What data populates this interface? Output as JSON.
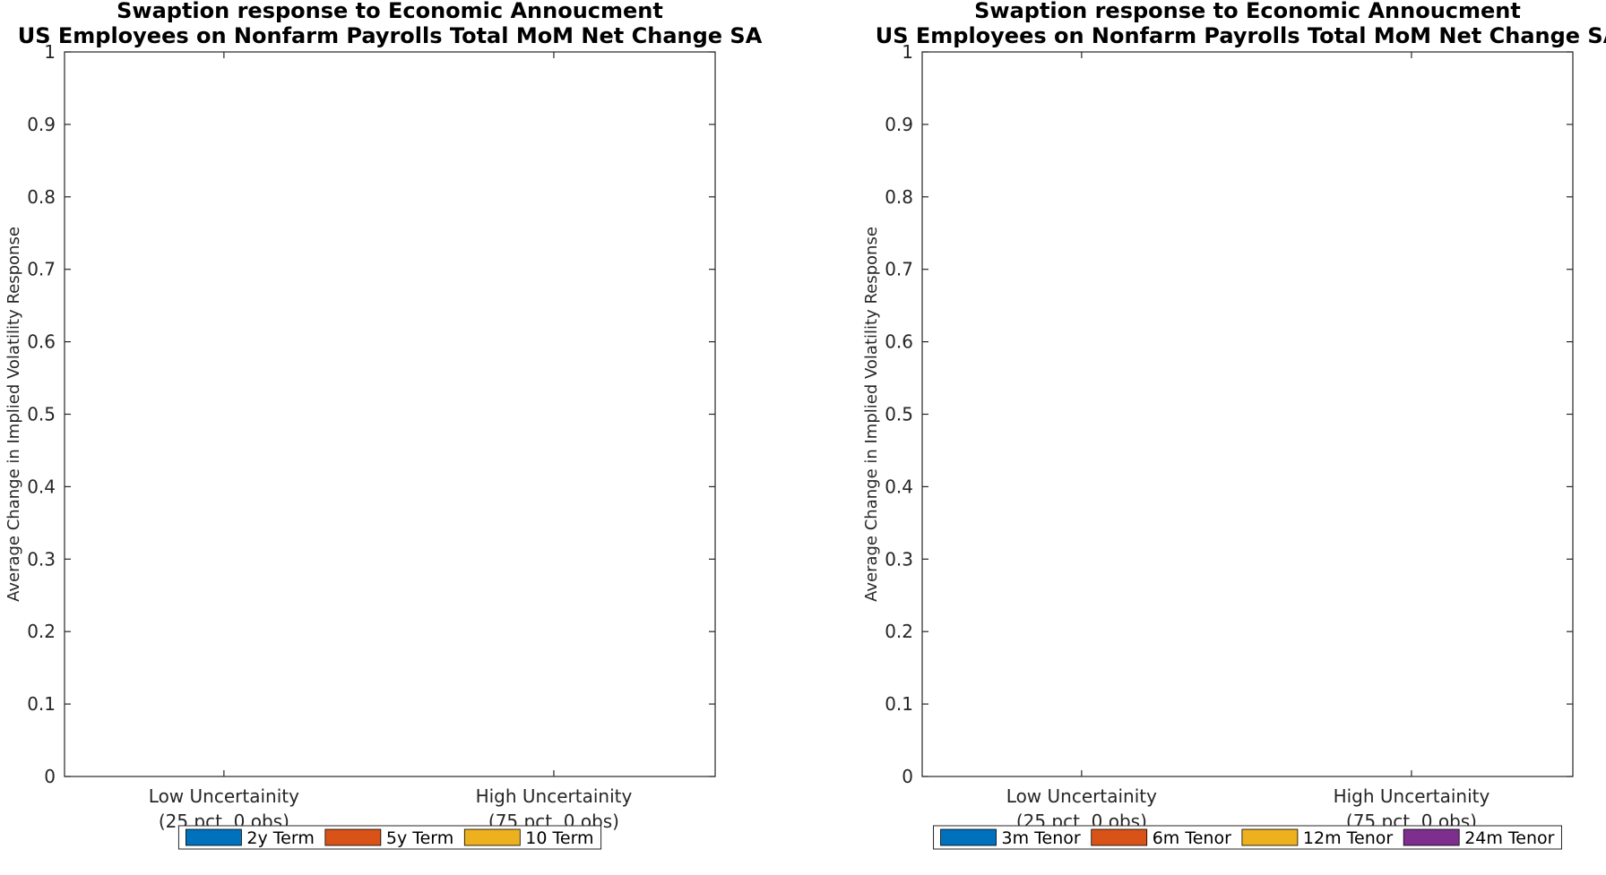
{
  "chart_data": [
    {
      "type": "bar",
      "title": "Swaption response to Economic Annoucment",
      "subtitle": "US Employees on Nonfarm Payrolls Total MoM Net Change SA",
      "xlabel": "",
      "ylabel": "Average Change in Implied Volatility Response",
      "categories": [
        [
          "Low Uncertainity",
          "(25 pct, 0 obs)"
        ],
        [
          "High Uncertainity",
          "(75 pct, 0 obs)"
        ]
      ],
      "ylim": [
        0,
        1
      ],
      "yticks": [
        0,
        0.1,
        0.2,
        0.3,
        0.4,
        0.5,
        0.6,
        0.7,
        0.8,
        0.9,
        1
      ],
      "ytick_labels": [
        "0",
        "0.1",
        "0.2",
        "0.3",
        "0.4",
        "0.5",
        "0.6",
        "0.7",
        "0.8",
        "0.9",
        "1"
      ],
      "grid": false,
      "legend_position": "bottom",
      "series": [
        {
          "name": "2y Term",
          "color": "#0072BD",
          "values": [
            null,
            null
          ]
        },
        {
          "name": "5y Term",
          "color": "#D95319",
          "values": [
            null,
            null
          ]
        },
        {
          "name": "10 Term",
          "color": "#EDB120",
          "values": [
            null,
            null
          ]
        }
      ]
    },
    {
      "type": "bar",
      "title": "Swaption response to Economic Annoucment",
      "subtitle": "US Employees on Nonfarm Payrolls Total MoM Net Change SA",
      "xlabel": "",
      "ylabel": "Average Change in Implied Volatility Response",
      "categories": [
        [
          "Low Uncertainity",
          "(25 pct, 0 obs)"
        ],
        [
          "High Uncertainity",
          "(75 pct, 0 obs)"
        ]
      ],
      "ylim": [
        0,
        1
      ],
      "yticks": [
        0,
        0.1,
        0.2,
        0.3,
        0.4,
        0.5,
        0.6,
        0.7,
        0.8,
        0.9,
        1
      ],
      "ytick_labels": [
        "0",
        "0.1",
        "0.2",
        "0.3",
        "0.4",
        "0.5",
        "0.6",
        "0.7",
        "0.8",
        "0.9",
        "1"
      ],
      "grid": false,
      "legend_position": "bottom",
      "series": [
        {
          "name": "3m Tenor",
          "color": "#0072BD",
          "values": [
            null,
            null
          ]
        },
        {
          "name": "6m Tenor",
          "color": "#D95319",
          "values": [
            null,
            null
          ]
        },
        {
          "name": "12m Tenor",
          "color": "#EDB120",
          "values": [
            null,
            null
          ]
        },
        {
          "name": "24m Tenor",
          "color": "#7E2F8E",
          "values": [
            null,
            null
          ]
        }
      ]
    }
  ]
}
